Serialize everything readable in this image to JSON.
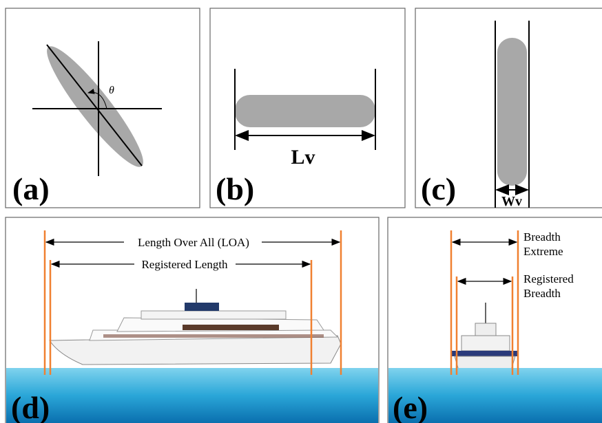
{
  "panels": {
    "a": {
      "label": "(a)",
      "angle_symbol": "θ"
    },
    "b": {
      "label": "(b)",
      "dimension": "Lv"
    },
    "c": {
      "label": "(c)",
      "dimension": "Wv"
    },
    "d": {
      "label": "(d)",
      "loa": "Length Over All (LOA)",
      "registered_length": "Registered Length"
    },
    "e": {
      "label": "(e)",
      "breadth_extreme": [
        "Breadth",
        "Extreme"
      ],
      "registered_breadth": [
        "Registered",
        "Breadth"
      ]
    }
  }
}
